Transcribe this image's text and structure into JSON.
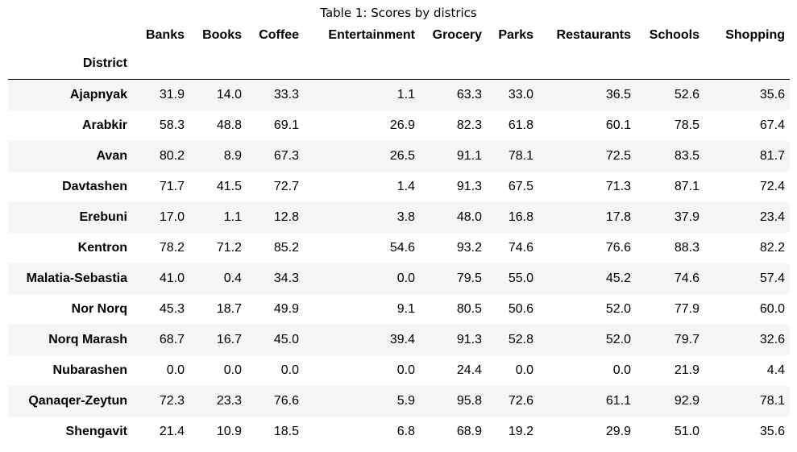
{
  "caption": "Table 1: Scores by districs",
  "index_name": "District",
  "columns": [
    "Banks",
    "Books",
    "Coffee",
    "Entertainment",
    "Grocery",
    "Parks",
    "Restaurants",
    "Schools",
    "Shopping"
  ],
  "rows": [
    {
      "district": "Ajapnyak",
      "values": [
        "31.9",
        "14.0",
        "33.3",
        "1.1",
        "63.3",
        "33.0",
        "36.5",
        "52.6",
        "35.6"
      ]
    },
    {
      "district": "Arabkir",
      "values": [
        "58.3",
        "48.8",
        "69.1",
        "26.9",
        "82.3",
        "61.8",
        "60.1",
        "78.5",
        "67.4"
      ]
    },
    {
      "district": "Avan",
      "values": [
        "80.2",
        "8.9",
        "67.3",
        "26.5",
        "91.1",
        "78.1",
        "72.5",
        "83.5",
        "81.7"
      ]
    },
    {
      "district": "Davtashen",
      "values": [
        "71.7",
        "41.5",
        "72.7",
        "1.4",
        "91.3",
        "67.5",
        "71.3",
        "87.1",
        "72.4"
      ]
    },
    {
      "district": "Erebuni",
      "values": [
        "17.0",
        "1.1",
        "12.8",
        "3.8",
        "48.0",
        "16.8",
        "17.8",
        "37.9",
        "23.4"
      ]
    },
    {
      "district": "Kentron",
      "values": [
        "78.2",
        "71.2",
        "85.2",
        "54.6",
        "93.2",
        "74.6",
        "76.6",
        "88.3",
        "82.2"
      ]
    },
    {
      "district": "Malatia-Sebastia",
      "values": [
        "41.0",
        "0.4",
        "34.3",
        "0.0",
        "79.5",
        "55.0",
        "45.2",
        "74.6",
        "57.4"
      ]
    },
    {
      "district": "Nor Norq",
      "values": [
        "45.3",
        "18.7",
        "49.9",
        "9.1",
        "80.5",
        "50.6",
        "52.0",
        "77.9",
        "60.0"
      ]
    },
    {
      "district": "Norq Marash",
      "values": [
        "68.7",
        "16.7",
        "45.0",
        "39.4",
        "91.3",
        "52.8",
        "52.0",
        "79.7",
        "32.6"
      ]
    },
    {
      "district": "Nubarashen",
      "values": [
        "0.0",
        "0.0",
        "0.0",
        "0.0",
        "24.4",
        "0.0",
        "0.0",
        "21.9",
        "4.4"
      ]
    },
    {
      "district": "Qanaqer-Zeytun",
      "values": [
        "72.3",
        "23.3",
        "76.6",
        "5.9",
        "95.8",
        "72.6",
        "61.1",
        "92.9",
        "78.1"
      ]
    },
    {
      "district": "Shengavit",
      "values": [
        "21.4",
        "10.9",
        "18.5",
        "6.8",
        "68.9",
        "19.2",
        "29.9",
        "51.0",
        "35.6"
      ]
    }
  ]
}
